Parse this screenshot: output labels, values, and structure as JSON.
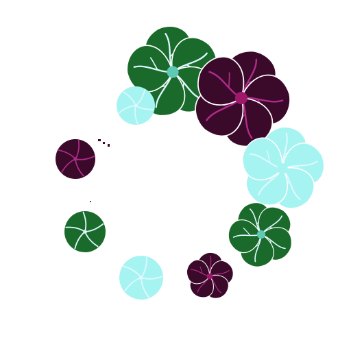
{
  "scene": {
    "background": "#ffffff",
    "palette": {
      "forest_green": "#1a6b2b",
      "plum": "#3b0a2a",
      "aqua": "#a6f4f1",
      "center_teal": "#5fc9b3",
      "center_magenta": "#a0186a",
      "vein_light": "#dff8ff",
      "vein_dark": "#b02b8a"
    },
    "flowers": [
      {
        "name": "green-flower-large",
        "shape": "pinwheel",
        "petals": 5,
        "color": "forest_green",
        "center": "center_teal",
        "vein": "vein_light"
      },
      {
        "name": "plum-flower-large",
        "shape": "pinwheel",
        "petals": 5,
        "color": "plum",
        "center": "center_magenta",
        "vein": "vein_dark"
      },
      {
        "name": "aqua-bud-small",
        "shape": "bud",
        "petals": 5,
        "color": "aqua",
        "center": "aqua",
        "vein": "vein_light"
      },
      {
        "name": "aqua-flower-large",
        "shape": "pinwheel",
        "petals": 5,
        "color": "aqua",
        "center": "aqua",
        "vein": "vein_light"
      },
      {
        "name": "plum-bud-left",
        "shape": "bud",
        "petals": 5,
        "color": "plum",
        "center": "plum",
        "vein": "vein_dark"
      },
      {
        "name": "green-bud-left",
        "shape": "bud",
        "petals": 5,
        "color": "forest_green",
        "center": "forest_green",
        "vein": "vein_light"
      },
      {
        "name": "green-flower-small-right",
        "shape": "pinwheel",
        "petals": 5,
        "color": "forest_green",
        "center": "center_teal",
        "vein": "vein_light"
      },
      {
        "name": "aqua-bud-bottom",
        "shape": "bud",
        "petals": 5,
        "color": "aqua",
        "center": "aqua",
        "vein": "vein_light"
      },
      {
        "name": "plum-flower-bottom",
        "shape": "pinwheel",
        "petals": 5,
        "color": "plum",
        "center": "center_magenta",
        "vein": "vein_dark"
      }
    ]
  }
}
